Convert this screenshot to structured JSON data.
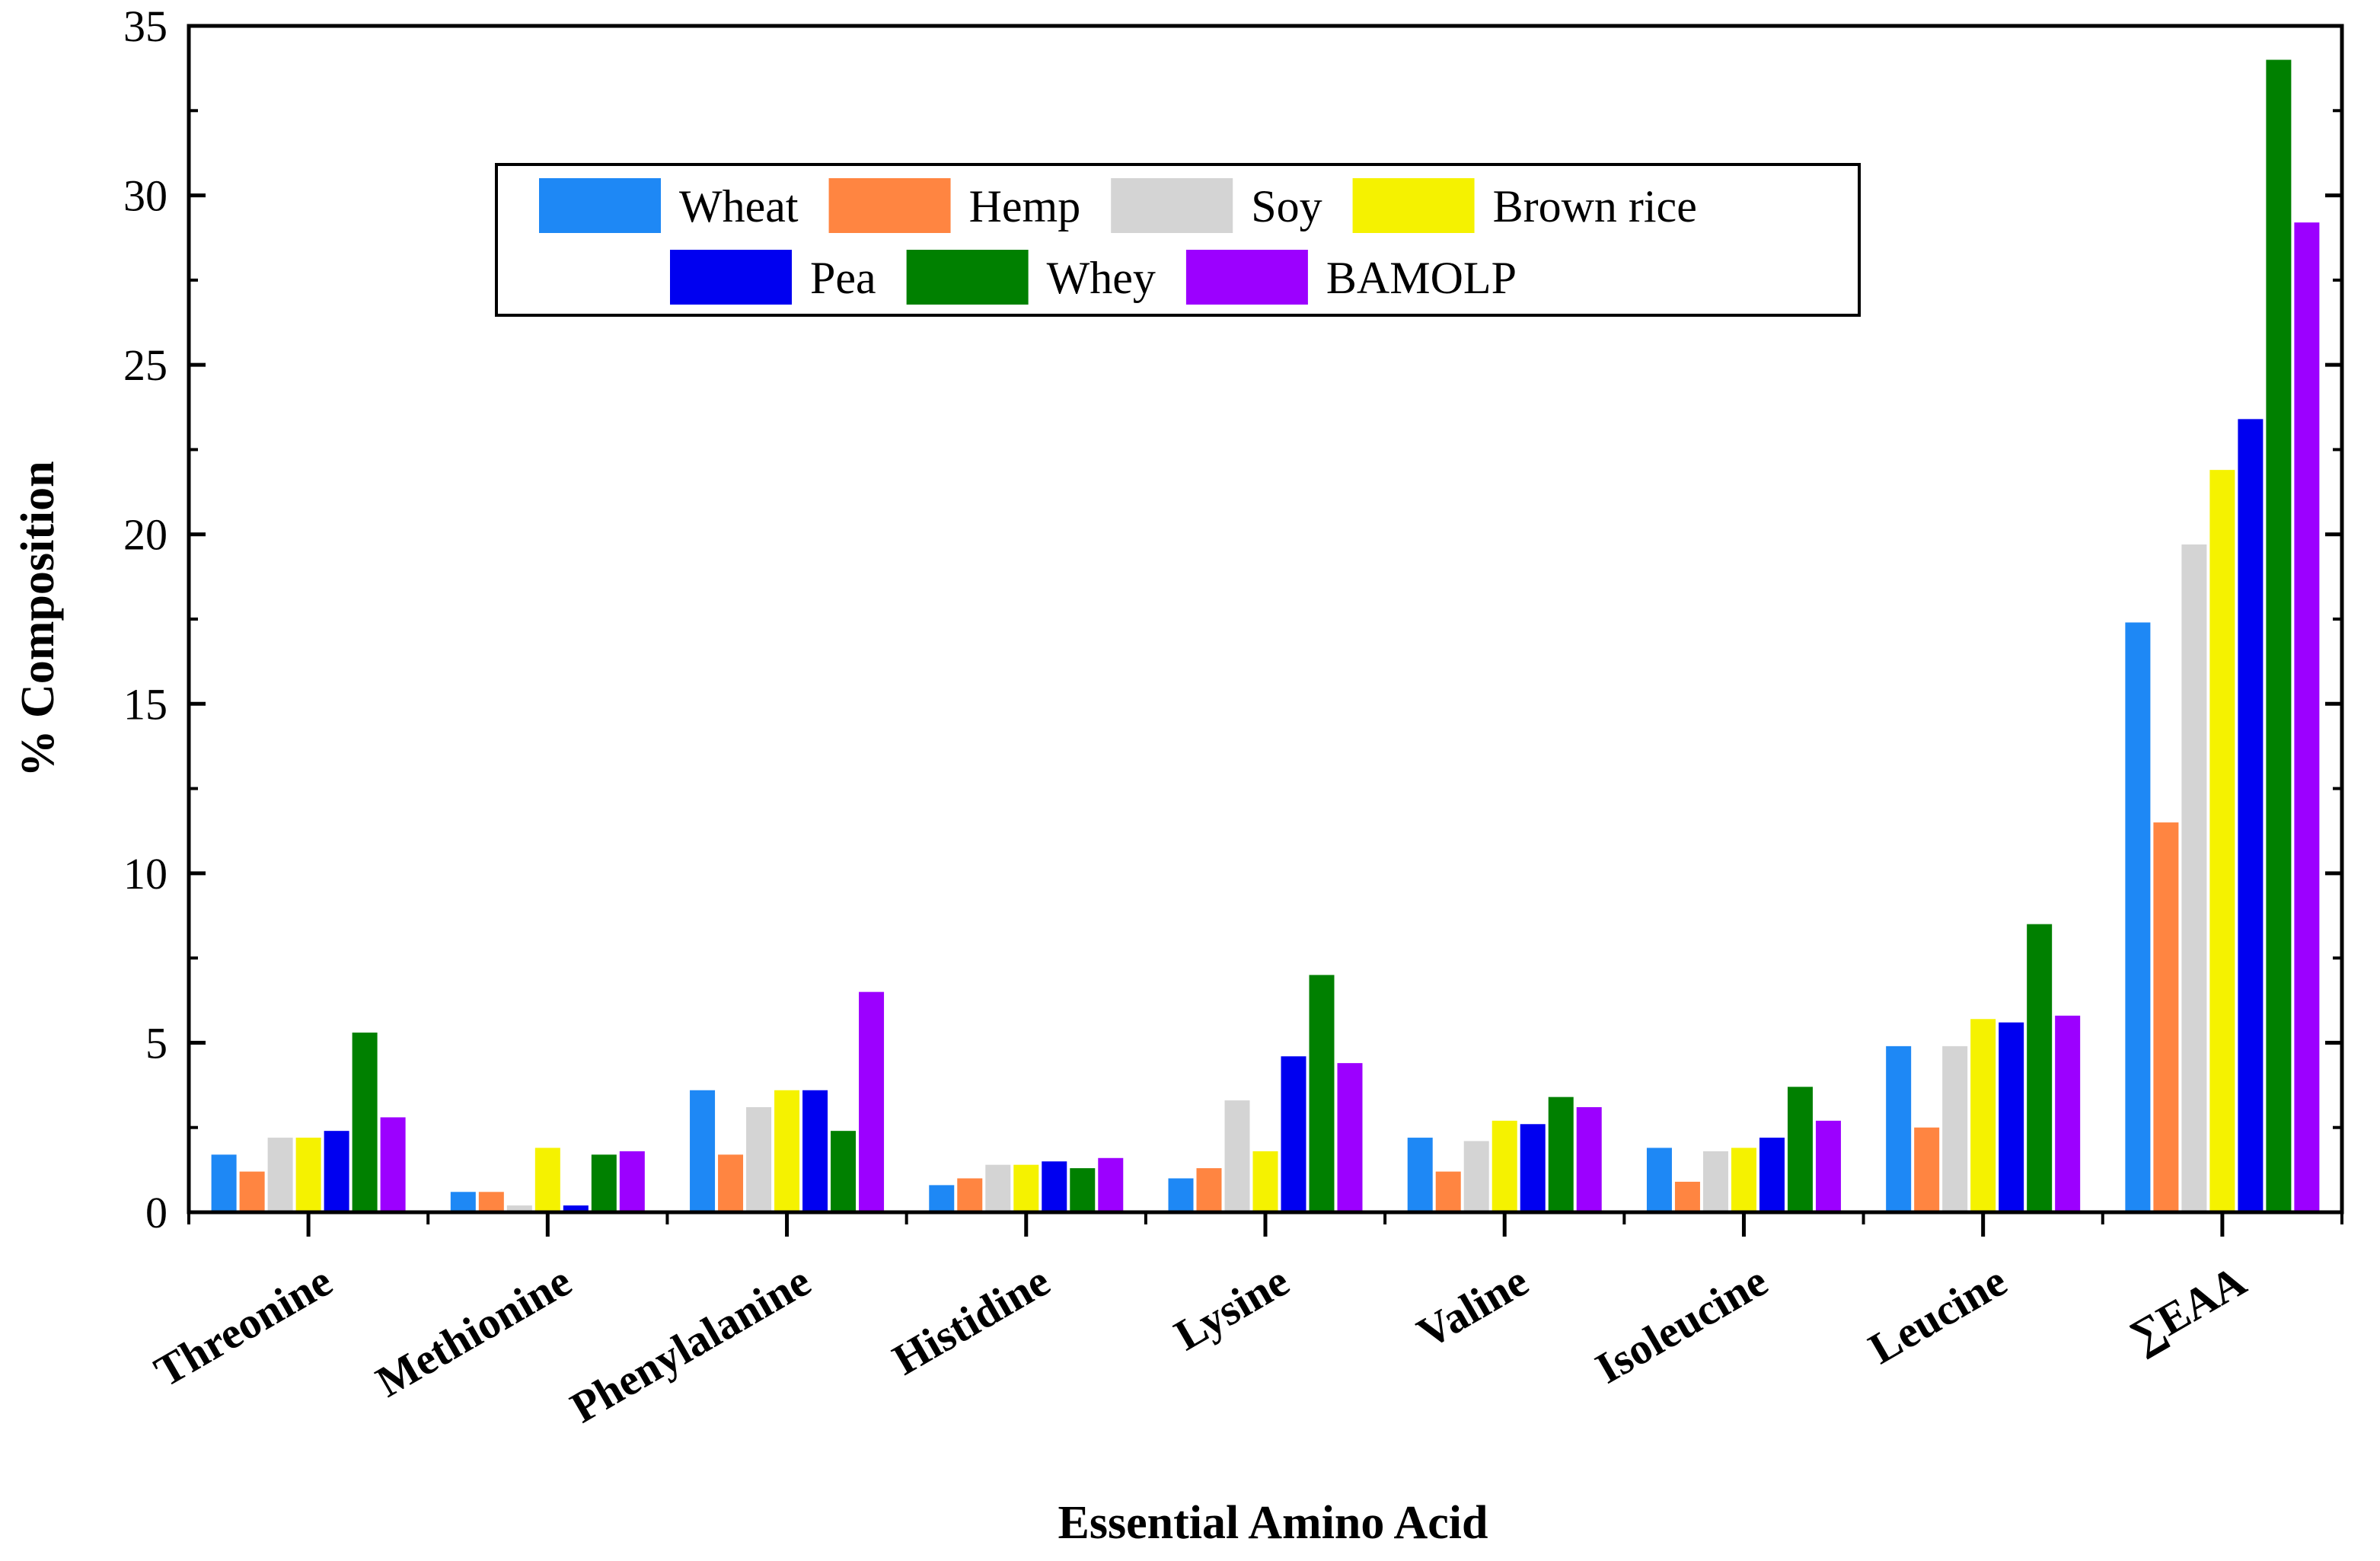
{
  "chart_data": {
    "type": "bar",
    "title": "",
    "xlabel": "Essential Amino Acid",
    "ylabel": "% Composition",
    "ylim": [
      0,
      35
    ],
    "yticks": [
      0,
      5,
      10,
      15,
      20,
      25,
      30,
      35
    ],
    "ytick_labels": [
      "0",
      "5",
      "10",
      "15",
      "20",
      "25",
      "30",
      "35"
    ],
    "grid": false,
    "legend_position": "top-center",
    "categories": [
      "Threonine",
      "Methionine",
      "Phenylalanine",
      "Histidine",
      "Lysine",
      "Valine",
      "Isoleucine",
      "Leucine",
      "∑EAA"
    ],
    "series": [
      {
        "name": "Wheat",
        "color": "#1e88f5",
        "values": [
          1.7,
          0.6,
          3.6,
          0.8,
          1.0,
          2.2,
          1.9,
          4.9,
          17.4
        ]
      },
      {
        "name": "Hemp",
        "color": "#ff8541",
        "values": [
          1.2,
          0.6,
          1.7,
          1.0,
          1.3,
          1.2,
          0.9,
          2.5,
          11.5
        ]
      },
      {
        "name": "Soy",
        "color": "#d4d4d4",
        "values": [
          2.2,
          0.2,
          3.1,
          1.4,
          3.3,
          2.1,
          1.8,
          4.9,
          19.7
        ]
      },
      {
        "name": "Brown rice",
        "color": "#f5f200",
        "values": [
          2.2,
          1.9,
          3.6,
          1.4,
          1.8,
          2.7,
          1.9,
          5.7,
          21.9
        ]
      },
      {
        "name": "Pea",
        "color": "#0000f0",
        "values": [
          2.4,
          0.2,
          3.6,
          1.5,
          4.6,
          2.6,
          2.2,
          5.6,
          23.4
        ]
      },
      {
        "name": "Whey",
        "color": "#008000",
        "values": [
          5.3,
          1.7,
          2.4,
          1.3,
          7.0,
          3.4,
          3.7,
          8.5,
          34.0
        ]
      },
      {
        "name": "BAMOLP",
        "color": "#9c00ff",
        "values": [
          2.8,
          1.8,
          6.5,
          1.6,
          4.4,
          3.1,
          2.7,
          5.8,
          29.2
        ]
      }
    ]
  }
}
